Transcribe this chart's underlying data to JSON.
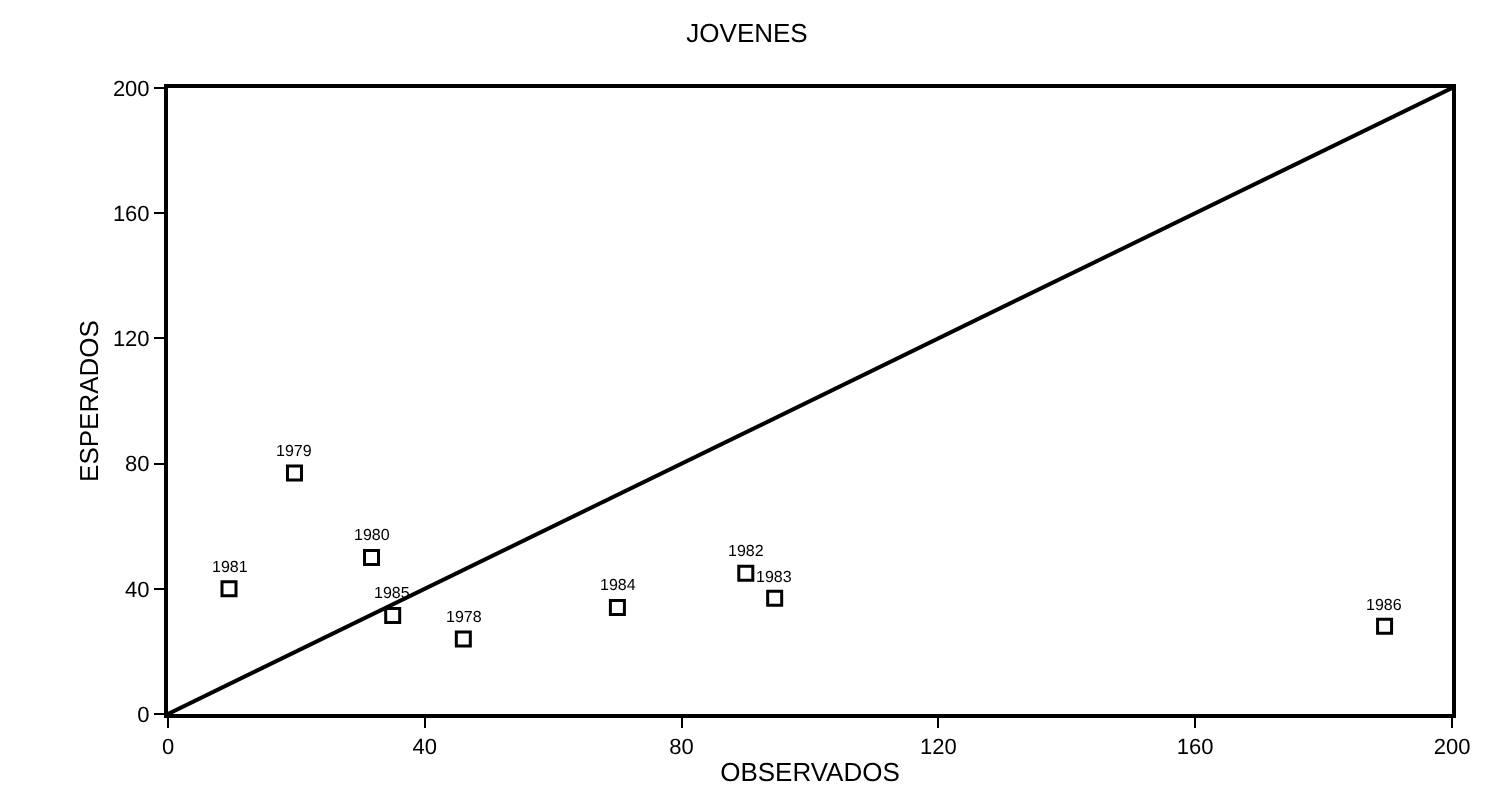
{
  "chart_data": {
    "type": "scatter",
    "title": "JOVENES",
    "xlabel": "OBSERVADOS",
    "ylabel": "ESPERADOS",
    "xlim": [
      0,
      200
    ],
    "xticks": [
      0,
      40,
      80,
      120,
      160,
      200
    ],
    "ylim": [
      0,
      200
    ],
    "yticks": [
      0,
      40,
      80,
      120,
      160,
      200
    ],
    "series": [
      {
        "marker": "square",
        "color": "#000000",
        "x": [
          9.5,
          19.7,
          31.7,
          35,
          46,
          70,
          90,
          94.5,
          189.5
        ],
        "values": [
          40,
          77,
          50,
          31.5,
          24,
          34,
          45,
          37,
          28
        ]
      },
      {
        "type": "line",
        "color": "#000000",
        "line_style": "solid",
        "x": [
          0,
          200
        ],
        "values": [
          0,
          200
        ]
      }
    ],
    "annotations": [
      {
        "text": "1981",
        "x": 9.5,
        "y": 40
      },
      {
        "text": "1979",
        "x": 19.7,
        "y": 77
      },
      {
        "text": "1980",
        "x": 31.7,
        "y": 50
      },
      {
        "text": "1985",
        "x": 35,
        "y": 31.5
      },
      {
        "text": "1978",
        "x": 46,
        "y": 24
      },
      {
        "text": "1984",
        "x": 70,
        "y": 34
      },
      {
        "text": "1982",
        "x": 90,
        "y": 45
      },
      {
        "text": "1983",
        "x": 94.5,
        "y": 37
      },
      {
        "text": "1986",
        "x": 189.5,
        "y": 28
      }
    ]
  }
}
